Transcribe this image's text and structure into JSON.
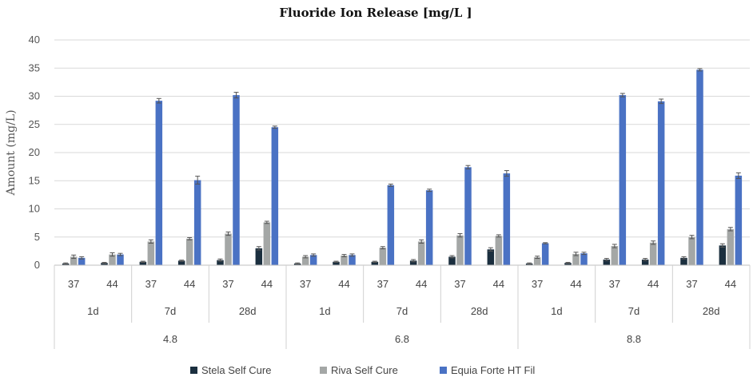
{
  "chart_data": {
    "type": "bar",
    "title": "Fluoride Ion Release [mg/L ]",
    "ylabel": "Amount (mg/L)",
    "xlabel": "",
    "ylim": [
      0,
      40
    ],
    "yticks": [
      0,
      5,
      10,
      15,
      20,
      25,
      30,
      35,
      40
    ],
    "grid": true,
    "legend_position": "bottom",
    "levels": {
      "temperature": [
        "37",
        "44"
      ],
      "time": [
        "1d",
        "7d",
        "28d"
      ],
      "ph": [
        "4.8",
        "6.8",
        "8.8"
      ]
    },
    "categories": [
      "4.8 / 1d / 37",
      "4.8 / 1d / 44",
      "4.8 / 7d / 37",
      "4.8 / 7d / 44",
      "4.8 / 28d / 37",
      "4.8 / 28d / 44",
      "6.8 / 1d / 37",
      "6.8 / 1d / 44",
      "6.8 / 7d / 37",
      "6.8 / 7d / 44",
      "6.8 / 28d / 37",
      "6.8 / 28d / 44",
      "8.8 / 1d / 37",
      "8.8 / 1d / 44",
      "8.8 / 7d / 37",
      "8.8 / 7d / 44",
      "8.8 / 28d / 37",
      "8.8 / 28d / 44"
    ],
    "series": [
      {
        "name": "Stela Self Cure",
        "color": "#1b2f3f",
        "values": [
          0.3,
          0.4,
          0.6,
          0.8,
          0.9,
          3.0,
          0.3,
          0.6,
          0.6,
          0.8,
          1.5,
          2.8,
          0.3,
          0.4,
          1.0,
          1.0,
          1.3,
          3.5
        ],
        "errors": [
          0.1,
          0.1,
          0.1,
          0.1,
          0.2,
          0.3,
          0.1,
          0.1,
          0.1,
          0.2,
          0.2,
          0.3,
          0.1,
          0.1,
          0.2,
          0.2,
          0.2,
          0.3
        ]
      },
      {
        "name": "Riva Self Cure",
        "color": "#a4a7a6",
        "values": [
          1.5,
          1.9,
          4.2,
          4.7,
          5.6,
          7.6,
          1.5,
          1.7,
          3.1,
          4.2,
          5.3,
          5.2,
          1.4,
          2.0,
          3.4,
          4.0,
          5.0,
          6.4
        ],
        "errors": [
          0.3,
          0.3,
          0.3,
          0.2,
          0.3,
          0.2,
          0.2,
          0.2,
          0.2,
          0.3,
          0.3,
          0.2,
          0.2,
          0.3,
          0.3,
          0.3,
          0.3,
          0.3
        ]
      },
      {
        "name": "Equia Forte HT Fil",
        "color": "#4a72c4",
        "values": [
          1.3,
          1.9,
          29.2,
          15.1,
          30.2,
          24.5,
          1.8,
          1.8,
          14.2,
          13.3,
          17.4,
          16.3,
          3.9,
          2.1,
          30.2,
          29.1,
          34.7,
          15.9
        ],
        "errors": [
          0.2,
          0.2,
          0.4,
          0.7,
          0.5,
          0.2,
          0.2,
          0.2,
          0.2,
          0.2,
          0.3,
          0.5,
          0.1,
          0.2,
          0.3,
          0.4,
          0.2,
          0.5
        ]
      }
    ]
  }
}
